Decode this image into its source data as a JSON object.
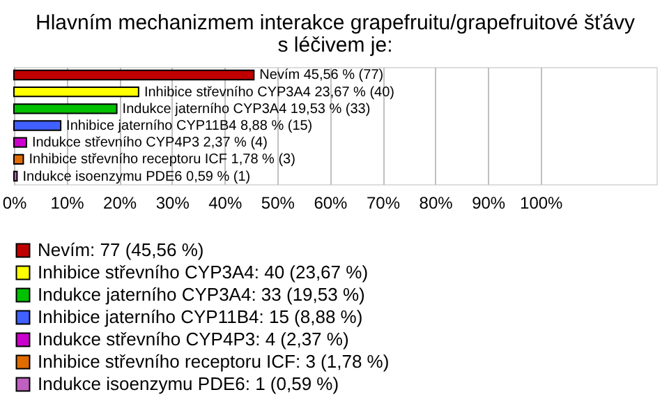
{
  "chart_data": {
    "type": "bar",
    "orientation": "horizontal",
    "title": "Hlavním mechanizmem interakce grapefruitu/grapefruitové šťávy s léčivem je:",
    "categories": [
      null,
      null,
      null,
      null,
      null,
      null,
      null
    ],
    "series": [
      {
        "name": "Nevím: 77 (45,56 %)",
        "color": "#c00000",
        "values": [
          45.56,
          null,
          null,
          null,
          null,
          null,
          null
        ],
        "value_labels": [
          "Nevím 45,56 % (77)",
          null,
          null,
          null,
          null,
          null,
          null
        ]
      },
      {
        "name": "Inhibice střevního CYP3A4: 40 (23,67 %)",
        "color": "#ffff00",
        "values": [
          null,
          23.67,
          null,
          null,
          null,
          null,
          null
        ],
        "value_labels": [
          null,
          "Inhibice střevního CYP3A4 23,67 % (40)",
          null,
          null,
          null,
          null,
          null
        ]
      },
      {
        "name": "Indukce jaterního CYP3A4: 33 (19,53 %)",
        "color": "#00c000",
        "values": [
          null,
          null,
          19.53,
          null,
          null,
          null,
          null
        ],
        "value_labels": [
          null,
          null,
          "Indukce jaterního CYP3A4 19,53 % (33)",
          null,
          null,
          null,
          null
        ]
      },
      {
        "name": "Inhibice jaterního CYP11B4: 15 (8,88 %)",
        "color": "#4060ff",
        "values": [
          null,
          null,
          null,
          8.88,
          null,
          null,
          null
        ],
        "value_labels": [
          null,
          null,
          null,
          "Inhibice jaterního CYP11B4 8,88 % (15)",
          null,
          null,
          null
        ]
      },
      {
        "name": "Indukce střevního CYP4P3: 4 (2,37 %)",
        "color": "#cc00cc",
        "values": [
          null,
          null,
          null,
          null,
          2.37,
          null,
          null
        ],
        "value_labels": [
          null,
          null,
          null,
          null,
          "Indukce střevního CYP4P3 2,37 % (4)",
          null,
          null
        ]
      },
      {
        "name": "Inhibice střevního receptoru ICF: 3 (1,78 %)",
        "color": "#e06c00",
        "values": [
          null,
          null,
          null,
          null,
          null,
          1.78,
          null
        ],
        "value_labels": [
          null,
          null,
          null,
          null,
          null,
          "Inhibice střevního receptoru ICF 1,78 % (3)",
          null
        ]
      },
      {
        "name": "Indukce isoenzymu PDE6: 1 (0,59 %)",
        "color": "#c060c0",
        "values": [
          null,
          null,
          null,
          null,
          null,
          null,
          0.59
        ],
        "value_labels": [
          null,
          null,
          null,
          null,
          null,
          null,
          "Indukce isoenzymu PDE6 0,59 % (1)"
        ]
      }
    ],
    "xlim": [
      0,
      122
    ],
    "xticks": [
      {
        "value": 0,
        "label": "0%"
      },
      {
        "value": 10,
        "label": "10%"
      },
      {
        "value": 20,
        "label": "20%"
      },
      {
        "value": 30,
        "label": "30%"
      },
      {
        "value": 40,
        "label": "40%"
      },
      {
        "value": 50,
        "label": "50%"
      },
      {
        "value": 60,
        "label": "60%"
      },
      {
        "value": 70,
        "label": "70%"
      },
      {
        "value": 80,
        "label": "80%"
      },
      {
        "value": 90,
        "label": "90%"
      },
      {
        "value": 100,
        "label": "100%"
      }
    ],
    "grid": "x",
    "legend": "bottom",
    "tick_labels": "x"
  }
}
